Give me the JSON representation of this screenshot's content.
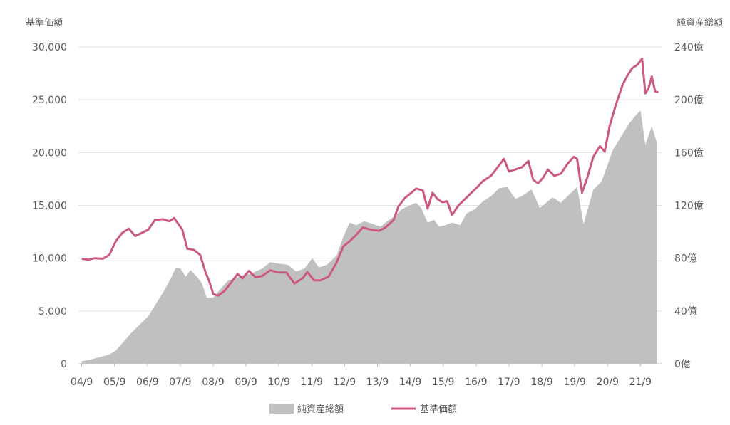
{
  "chart_data": {
    "type": "line",
    "y_left": {
      "label": "基準価額",
      "ticks": [
        "30,000",
        "25,000",
        "20,000",
        "15,000",
        "10,000",
        "5,000",
        "0"
      ],
      "range": [
        0,
        30000
      ]
    },
    "y_right": {
      "label": "純資産総額",
      "ticks": [
        "240億",
        "200億",
        "160億",
        "120億",
        "80億",
        "40億",
        "0億"
      ],
      "range": [
        0,
        240
      ]
    },
    "x_ticks": [
      "04/9",
      "05/9",
      "06/9",
      "07/9",
      "08/9",
      "09/9",
      "10/9",
      "11/9",
      "12/9",
      "13/9",
      "14/9",
      "15/9",
      "16/9",
      "17/9",
      "18/9",
      "19/9",
      "20/9",
      "21/9"
    ],
    "grid": true,
    "legend_position": "bottom",
    "series": [
      {
        "name": "純資産総額",
        "type": "area",
        "axis": "right",
        "color": "#c0c0c0",
        "points": [
          [
            2004.7,
            2
          ],
          [
            2004.95,
            3
          ],
          [
            2005.25,
            5
          ],
          [
            2005.55,
            7
          ],
          [
            2005.75,
            10
          ],
          [
            2006.0,
            17
          ],
          [
            2006.25,
            24
          ],
          [
            2006.5,
            30
          ],
          [
            2006.75,
            36
          ],
          [
            2007.0,
            46
          ],
          [
            2007.25,
            56
          ],
          [
            2007.45,
            65
          ],
          [
            2007.6,
            73
          ],
          [
            2007.75,
            72
          ],
          [
            2007.9,
            66
          ],
          [
            2008.05,
            71
          ],
          [
            2008.25,
            66
          ],
          [
            2008.4,
            61
          ],
          [
            2008.55,
            50
          ],
          [
            2008.75,
            50
          ],
          [
            2008.95,
            56
          ],
          [
            2009.2,
            63
          ],
          [
            2009.45,
            65
          ],
          [
            2009.65,
            67
          ],
          [
            2009.85,
            68
          ],
          [
            2010.05,
            70
          ],
          [
            2010.25,
            72
          ],
          [
            2010.5,
            77
          ],
          [
            2010.75,
            76
          ],
          [
            2011.05,
            75
          ],
          [
            2011.3,
            70
          ],
          [
            2011.55,
            72
          ],
          [
            2011.8,
            80
          ],
          [
            2012.0,
            73
          ],
          [
            2012.25,
            75
          ],
          [
            2012.55,
            82
          ],
          [
            2012.75,
            96
          ],
          [
            2012.95,
            107
          ],
          [
            2013.15,
            105
          ],
          [
            2013.4,
            108
          ],
          [
            2013.65,
            106
          ],
          [
            2013.9,
            104
          ],
          [
            2014.1,
            108
          ],
          [
            2014.35,
            112
          ],
          [
            2014.55,
            117
          ],
          [
            2014.8,
            120
          ],
          [
            2015.0,
            122
          ],
          [
            2015.15,
            118
          ],
          [
            2015.35,
            107
          ],
          [
            2015.55,
            109
          ],
          [
            2015.7,
            104
          ],
          [
            2015.9,
            105
          ],
          [
            2016.1,
            107
          ],
          [
            2016.35,
            105
          ],
          [
            2016.55,
            114
          ],
          [
            2016.8,
            117
          ],
          [
            2017.05,
            123
          ],
          [
            2017.3,
            127
          ],
          [
            2017.55,
            133
          ],
          [
            2017.8,
            134
          ],
          [
            2018.05,
            125
          ],
          [
            2018.25,
            127
          ],
          [
            2018.55,
            132
          ],
          [
            2018.8,
            118
          ],
          [
            2019.0,
            122
          ],
          [
            2019.2,
            126
          ],
          [
            2019.45,
            122
          ],
          [
            2019.7,
            128
          ],
          [
            2019.95,
            134
          ],
          [
            2020.15,
            106
          ],
          [
            2020.45,
            132
          ],
          [
            2020.7,
            138
          ],
          [
            2020.85,
            148
          ],
          [
            2021.05,
            162
          ],
          [
            2021.3,
            172
          ],
          [
            2021.55,
            182
          ],
          [
            2021.75,
            188
          ],
          [
            2021.9,
            192
          ],
          [
            2022.05,
            166
          ],
          [
            2022.25,
            180
          ],
          [
            2022.4,
            168
          ]
        ]
      },
      {
        "name": "基準価額",
        "type": "line",
        "axis": "left",
        "color": "#cc5a7c",
        "points": [
          [
            2004.7,
            9950
          ],
          [
            2004.9,
            9850
          ],
          [
            2005.1,
            10000
          ],
          [
            2005.35,
            9950
          ],
          [
            2005.55,
            10300
          ],
          [
            2005.75,
            11600
          ],
          [
            2005.95,
            12400
          ],
          [
            2006.15,
            12800
          ],
          [
            2006.35,
            12100
          ],
          [
            2006.55,
            12400
          ],
          [
            2006.75,
            12700
          ],
          [
            2006.95,
            13600
          ],
          [
            2007.2,
            13700
          ],
          [
            2007.4,
            13500
          ],
          [
            2007.55,
            13800
          ],
          [
            2007.8,
            12700
          ],
          [
            2007.95,
            10900
          ],
          [
            2008.15,
            10800
          ],
          [
            2008.35,
            10300
          ],
          [
            2008.5,
            8800
          ],
          [
            2008.65,
            7600
          ],
          [
            2008.75,
            6600
          ],
          [
            2008.9,
            6450
          ],
          [
            2009.1,
            6900
          ],
          [
            2009.3,
            7700
          ],
          [
            2009.5,
            8500
          ],
          [
            2009.65,
            8100
          ],
          [
            2009.85,
            8800
          ],
          [
            2010.05,
            8200
          ],
          [
            2010.25,
            8300
          ],
          [
            2010.5,
            8850
          ],
          [
            2010.75,
            8650
          ],
          [
            2011.0,
            8650
          ],
          [
            2011.25,
            7600
          ],
          [
            2011.5,
            8100
          ],
          [
            2011.65,
            8700
          ],
          [
            2011.85,
            7900
          ],
          [
            2012.05,
            7900
          ],
          [
            2012.3,
            8250
          ],
          [
            2012.55,
            9600
          ],
          [
            2012.75,
            11100
          ],
          [
            2012.95,
            11600
          ],
          [
            2013.15,
            12200
          ],
          [
            2013.35,
            12900
          ],
          [
            2013.6,
            12700
          ],
          [
            2013.85,
            12600
          ],
          [
            2014.05,
            12900
          ],
          [
            2014.3,
            13600
          ],
          [
            2014.45,
            14900
          ],
          [
            2014.65,
            15700
          ],
          [
            2014.85,
            16200
          ],
          [
            2015.0,
            16600
          ],
          [
            2015.2,
            16400
          ],
          [
            2015.35,
            14700
          ],
          [
            2015.5,
            16200
          ],
          [
            2015.65,
            15600
          ],
          [
            2015.8,
            15300
          ],
          [
            2015.95,
            15400
          ],
          [
            2016.1,
            14100
          ],
          [
            2016.3,
            15000
          ],
          [
            2016.5,
            15600
          ],
          [
            2016.7,
            16200
          ],
          [
            2016.9,
            16800
          ],
          [
            2017.05,
            17300
          ],
          [
            2017.3,
            17800
          ],
          [
            2017.5,
            18600
          ],
          [
            2017.7,
            19400
          ],
          [
            2017.85,
            18200
          ],
          [
            2018.05,
            18400
          ],
          [
            2018.25,
            18600
          ],
          [
            2018.45,
            19200
          ],
          [
            2018.6,
            17400
          ],
          [
            2018.75,
            17100
          ],
          [
            2018.9,
            17600
          ],
          [
            2019.05,
            18400
          ],
          [
            2019.25,
            17800
          ],
          [
            2019.45,
            18000
          ],
          [
            2019.65,
            18900
          ],
          [
            2019.85,
            19600
          ],
          [
            2019.95,
            19400
          ],
          [
            2020.1,
            16200
          ],
          [
            2020.25,
            17500
          ],
          [
            2020.45,
            19600
          ],
          [
            2020.65,
            20600
          ],
          [
            2020.8,
            20100
          ],
          [
            2020.95,
            22500
          ],
          [
            2021.15,
            24600
          ],
          [
            2021.35,
            26400
          ],
          [
            2021.5,
            27300
          ],
          [
            2021.65,
            28000
          ],
          [
            2021.8,
            28300
          ],
          [
            2021.95,
            28900
          ],
          [
            2022.05,
            25600
          ],
          [
            2022.15,
            26100
          ],
          [
            2022.25,
            27200
          ],
          [
            2022.35,
            25800
          ],
          [
            2022.45,
            25700
          ]
        ]
      }
    ]
  }
}
